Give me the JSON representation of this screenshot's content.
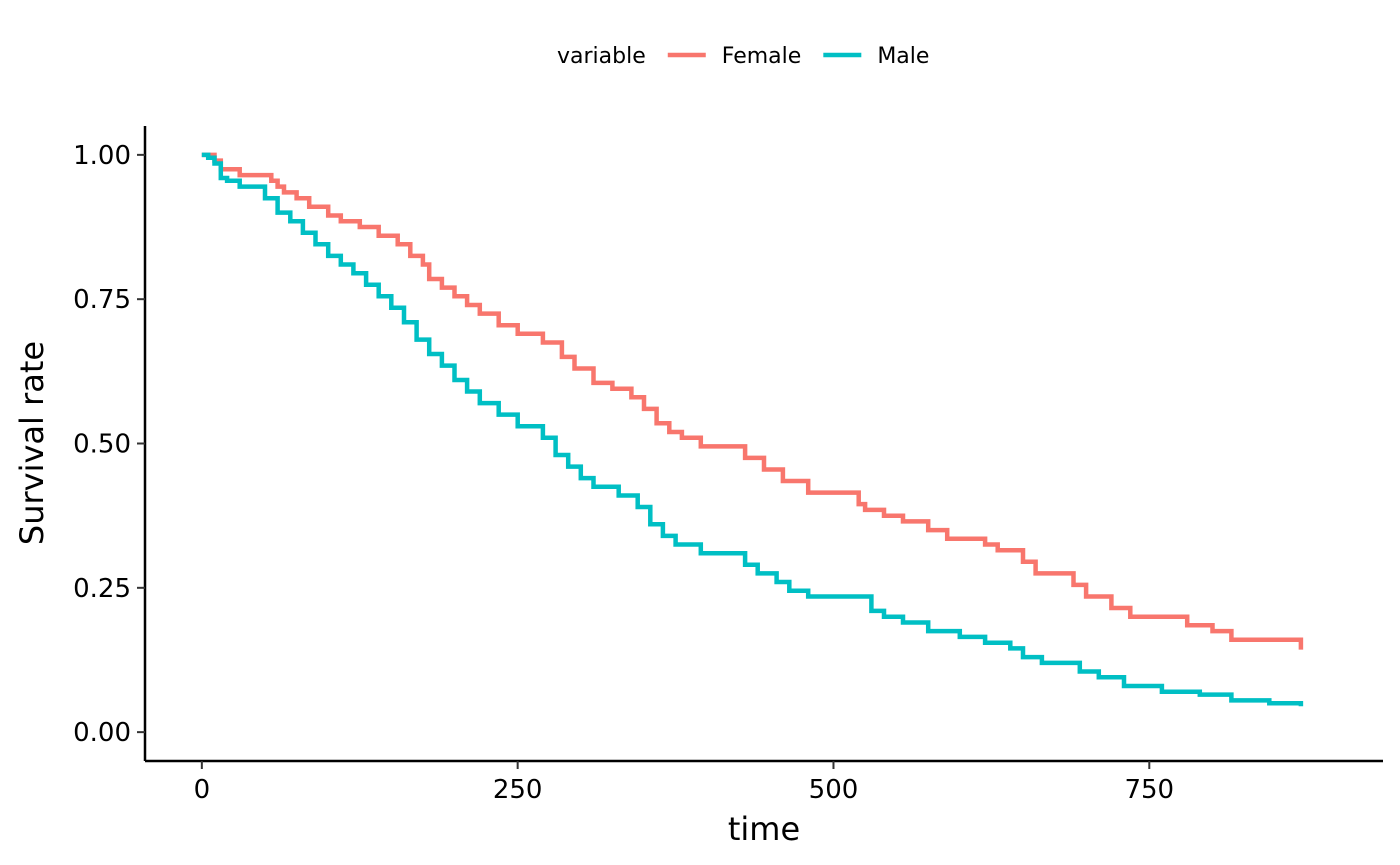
{
  "chart_data": {
    "type": "line",
    "step": true,
    "title": "",
    "xlabel": "time",
    "ylabel": "Survival rate",
    "xlim": [
      -45,
      935
    ],
    "ylim": [
      -0.05,
      1.05
    ],
    "x_ticks": [
      0,
      250,
      500,
      750
    ],
    "x_tick_labels": [
      "0",
      "250",
      "500",
      "750"
    ],
    "y_ticks": [
      0,
      0.25,
      0.5,
      0.75,
      1.0
    ],
    "y_tick_labels": [
      "0.00",
      "0.25",
      "0.50",
      "0.75",
      "1.00"
    ],
    "grid": false,
    "legend": {
      "title": "variable",
      "position": "top"
    },
    "series": [
      {
        "name": "Female",
        "color": "#F8766D",
        "x": [
          0,
          10,
          15,
          30,
          55,
          60,
          65,
          75,
          85,
          100,
          110,
          125,
          140,
          155,
          165,
          175,
          180,
          190,
          200,
          210,
          220,
          235,
          250,
          270,
          285,
          295,
          310,
          325,
          340,
          350,
          360,
          370,
          380,
          395,
          430,
          445,
          460,
          480,
          520,
          525,
          540,
          555,
          575,
          590,
          620,
          630,
          650,
          660,
          690,
          700,
          720,
          735,
          780,
          800,
          815,
          845,
          870,
          870
        ],
        "y": [
          1.0,
          0.99,
          0.975,
          0.965,
          0.955,
          0.945,
          0.935,
          0.925,
          0.91,
          0.895,
          0.885,
          0.875,
          0.86,
          0.845,
          0.825,
          0.81,
          0.785,
          0.77,
          0.755,
          0.74,
          0.725,
          0.705,
          0.69,
          0.675,
          0.65,
          0.63,
          0.605,
          0.595,
          0.58,
          0.56,
          0.535,
          0.52,
          0.51,
          0.495,
          0.475,
          0.455,
          0.435,
          0.415,
          0.395,
          0.385,
          0.375,
          0.365,
          0.35,
          0.335,
          0.325,
          0.315,
          0.295,
          0.275,
          0.255,
          0.235,
          0.215,
          0.2,
          0.185,
          0.175,
          0.16,
          0.16,
          0.16,
          0.143
        ]
      },
      {
        "name": "Male",
        "color": "#00BFC4",
        "x": [
          0,
          5,
          10,
          15,
          20,
          30,
          50,
          60,
          70,
          80,
          90,
          100,
          110,
          120,
          130,
          140,
          150,
          160,
          170,
          180,
          190,
          200,
          210,
          220,
          235,
          250,
          270,
          280,
          290,
          300,
          310,
          330,
          345,
          355,
          365,
          375,
          395,
          430,
          440,
          455,
          465,
          480,
          530,
          540,
          555,
          575,
          600,
          620,
          640,
          650,
          665,
          695,
          710,
          730,
          760,
          790,
          815,
          845,
          870,
          870
        ],
        "y": [
          1.0,
          0.995,
          0.985,
          0.96,
          0.955,
          0.945,
          0.925,
          0.9,
          0.885,
          0.865,
          0.845,
          0.825,
          0.81,
          0.795,
          0.775,
          0.755,
          0.735,
          0.71,
          0.68,
          0.655,
          0.635,
          0.61,
          0.59,
          0.57,
          0.55,
          0.53,
          0.51,
          0.48,
          0.46,
          0.44,
          0.425,
          0.41,
          0.39,
          0.36,
          0.34,
          0.325,
          0.31,
          0.29,
          0.275,
          0.26,
          0.245,
          0.235,
          0.21,
          0.2,
          0.19,
          0.175,
          0.165,
          0.155,
          0.145,
          0.13,
          0.12,
          0.105,
          0.095,
          0.08,
          0.07,
          0.065,
          0.055,
          0.05,
          0.05,
          0.045
        ]
      }
    ]
  }
}
